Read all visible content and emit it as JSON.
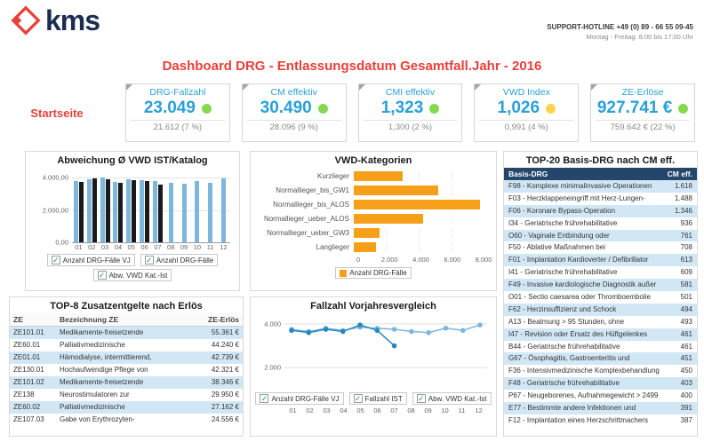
{
  "header": {
    "logo_text": "kms",
    "hotline_line1": "SUPPORT-HOTLINE +49 (0) 89 - 66 55 09-45",
    "hotline_line2": "Montag - Freitag: 8:00 bis 17:00 Uhr"
  },
  "title": "Dashboard DRG - Entlassungsdatum Gesamtfall.Jahr - 2016",
  "nav": {
    "home_label": "Startseite"
  },
  "kpis": [
    {
      "label": "DRG-Fallzahl",
      "value": "23.049",
      "status_color": "#84d94f",
      "sub": "21.612 (7 %)"
    },
    {
      "label": "CM effektiv",
      "value": "30.490",
      "status_color": "#84d94f",
      "sub": "28.096 (9 %)"
    },
    {
      "label": "CMI effektiv",
      "value": "1,323",
      "status_color": "#84d94f",
      "sub": "1,300 (2 %)"
    },
    {
      "label": "VWD Index",
      "value": "1,026",
      "status_color": "#ffd24d",
      "sub": "0,991 (4 %)"
    },
    {
      "label": "ZE-Erlöse",
      "value": "927.741 €",
      "status_color": "#84d94f",
      "sub": "759.642 € (22 %)"
    }
  ],
  "chart_data": [
    {
      "id": "vwd_abweichung",
      "type": "bar",
      "title": "Abweichung Ø VWD IST/Katalog",
      "categories": [
        "01",
        "02",
        "03",
        "04",
        "05",
        "06",
        "07",
        "08",
        "09",
        "10",
        "11",
        "12"
      ],
      "series": [
        {
          "name": "Anzahl DRG-Fälle VJ",
          "color": "#7eb6dc",
          "values": [
            3800,
            3900,
            4000,
            3750,
            3900,
            3850,
            3800,
            3700,
            3650,
            3800,
            3700,
            3950
          ]
        },
        {
          "name": "Anzahl DRG-Fälle",
          "color": "#1a1a1a",
          "values": [
            3750,
            3950,
            3900,
            3700,
            3850,
            3800,
            3600,
            null,
            null,
            null,
            null,
            null
          ]
        }
      ],
      "ylim": [
        0,
        4400
      ],
      "yticks": [
        {
          "label": "4.000,00",
          "value": 4000
        },
        {
          "label": "2.000,00",
          "value": 2000
        },
        {
          "label": "0,00",
          "value": 0
        }
      ],
      "legend": [
        {
          "label": "Anzahl DRG-Fälle VJ",
          "checked": true
        },
        {
          "label": "Anzahl DRG-Fälle",
          "checked": true
        },
        {
          "label": "Abw. VWD Kat.-Ist",
          "checked": true
        }
      ]
    },
    {
      "id": "vwd_kategorien",
      "type": "hbar",
      "title": "VWD-Kategorien",
      "categories": [
        "Kurzlieger",
        "Normallieger_bis_GW1",
        "Normallieger_bis_ALOS",
        "Normallieger_ueber_ALOS",
        "Normallieger_ueber_GW3",
        "Langlieger"
      ],
      "values": [
        3000,
        5200,
        7800,
        4300,
        1600,
        1350
      ],
      "bar_color": "#f6a01a",
      "xlim": [
        0,
        8000
      ],
      "xticks": [
        "0",
        "2.000",
        "4.000",
        "6.000",
        "8.000"
      ],
      "legend": [
        {
          "label": "Anzahl DRG-Fälle",
          "color": "#f6a01a"
        }
      ]
    },
    {
      "id": "fallzahl_vergleich",
      "type": "line",
      "title": "Fallzahl Vorjahresvergleich",
      "categories": [
        "01",
        "02",
        "03",
        "04",
        "05",
        "06",
        "07",
        "08",
        "09",
        "10",
        "11",
        "12"
      ],
      "series": [
        {
          "name": "Anzahl DRG-Fälle VJ",
          "color": "#7eb6dc",
          "values": [
            3750,
            3650,
            3800,
            3700,
            3850,
            3800,
            3750,
            3650,
            3600,
            3800,
            3700,
            3950
          ]
        },
        {
          "name": "Fallzahl IST",
          "color": "#2787c0",
          "values": [
            3700,
            3600,
            3750,
            3650,
            3950,
            3700,
            3000,
            null,
            null,
            null,
            null,
            null
          ]
        }
      ],
      "ylim": [
        1000,
        4400
      ],
      "yticks": [
        {
          "label": "4.000",
          "value": 4000
        },
        {
          "label": "2.000",
          "value": 2000
        }
      ],
      "legend": [
        {
          "label": "Anzahl DRG-Fälle VJ",
          "checked": true
        },
        {
          "label": "Fallzahl IST",
          "checked": true
        },
        {
          "label": "Abw. VWD Kat.-Ist",
          "checked": true
        }
      ]
    }
  ],
  "top20": {
    "title": "TOP-20 Basis-DRG nach CM eff.",
    "columns": [
      "Basis-DRG",
      "CM eff."
    ],
    "rows": [
      [
        "F98 - Komplexe minimalinvasive Operationen",
        "1.618"
      ],
      [
        "F03 - Herzklappeneingriff mit Herz-Lungen-",
        "1.488"
      ],
      [
        "F06 - Koronare Bypass-Operation",
        "1.346"
      ],
      [
        "I34 - Geriatrische frührehabilitative",
        "936"
      ],
      [
        "O60 - Vaginale Entbindung oder",
        "761"
      ],
      [
        "F50 - Ablative Maßnahmen bei",
        "708"
      ],
      [
        "F01 - Implantation Kardioverter / Defibrillator",
        "613"
      ],
      [
        "I41 - Geriatrische frührehabilitative",
        "609"
      ],
      [
        "F49 - Invasive kardiologische Diagnostik außer",
        "581"
      ],
      [
        "O01 - Sectio caesarea oder Thromboembolie",
        "501"
      ],
      [
        "F62 - Herzinsuffizienz und Schock",
        "494"
      ],
      [
        "A13 - Beatmung > 95 Stunden, ohne",
        "493"
      ],
      [
        "I47 - Revision oder Ersatz des Hüftgelenkes",
        "461"
      ],
      [
        "B44 - Geriatrische frührehabilitative",
        "461"
      ],
      [
        "G67 - Ösophagitis, Gastroenteritis und",
        "451"
      ],
      [
        "F36 - Intensivmedizinische Komplexbehandlung",
        "450"
      ],
      [
        "F48 - Geriatrische frührehabilitative",
        "403"
      ],
      [
        "P67 - Neugeborenes, Aufnahmegewicht > 2499",
        "400"
      ],
      [
        "E77 - Bestimmte andere Infektionen und",
        "391"
      ],
      [
        "F12 - Implantation eines Herzschrittmachers",
        "387"
      ]
    ]
  },
  "top8": {
    "title": "TOP-8 Zusatzentgelte nach Erlös",
    "columns": [
      "ZE",
      "Bezeichnung ZE",
      "ZE-Erlös"
    ],
    "rows": [
      [
        "ZE101.01",
        "Medikamente-freisetzende",
        "55.361 €"
      ],
      [
        "ZE60.01",
        "Palliativmedizinische",
        "44.240 €"
      ],
      [
        "ZE01.01",
        "Hämodialyse, intermittierend,",
        "42.739 €"
      ],
      [
        "ZE130.01",
        "Hochaufwendige Pflege von",
        "42.321 €"
      ],
      [
        "ZE101.02",
        "Medikamente-freisetzende",
        "38.346 €"
      ],
      [
        "ZE138",
        "Neurostimulatoren zur",
        "29.950 €"
      ],
      [
        "ZE60.02",
        "Palliativmedizinische",
        "27.162 €"
      ],
      [
        "ZE107.03",
        "Gabe von Erythrozyten-",
        "24.556 €"
      ]
    ]
  }
}
